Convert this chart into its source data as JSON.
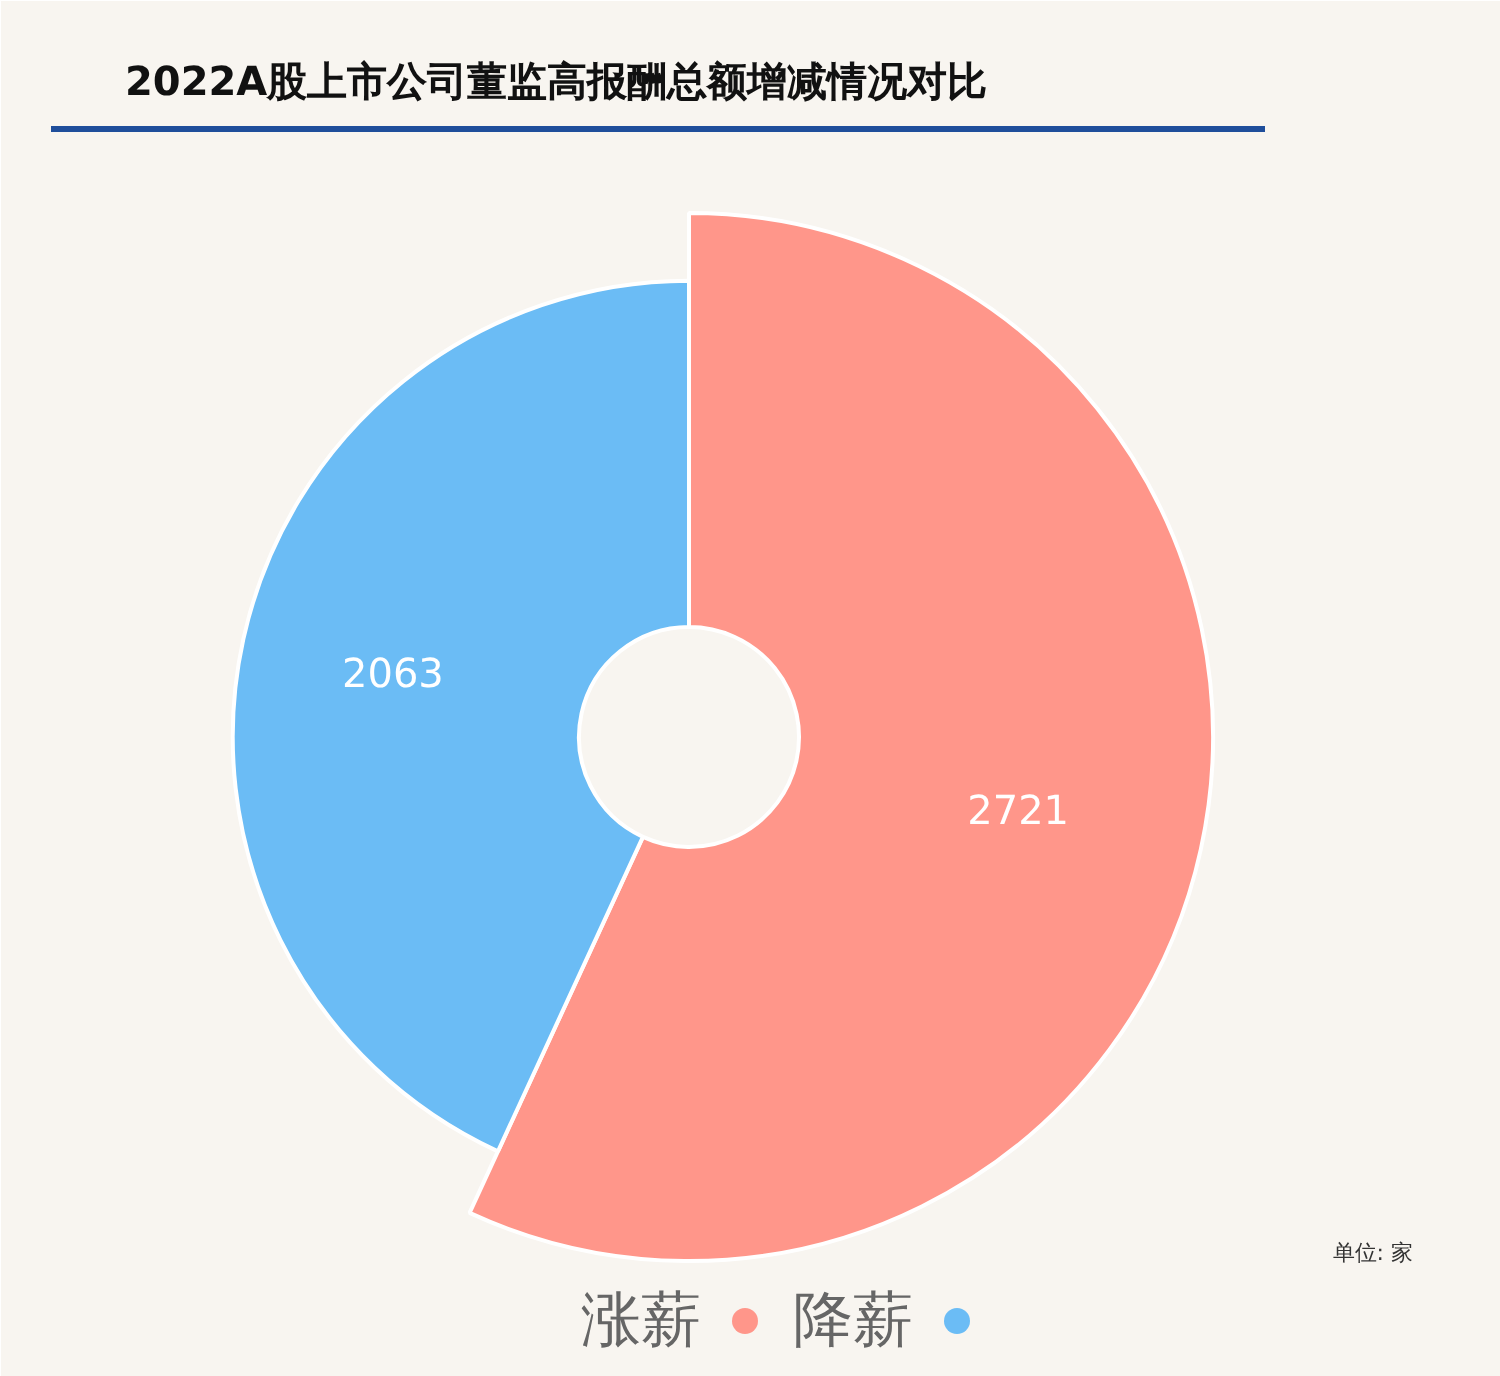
{
  "chart_data": {
    "type": "donut",
    "title": "2022A股上市公司董监高报酬总额增减情况对比",
    "categories": [
      "涨薪",
      "降薪"
    ],
    "values": [
      2721,
      2063
    ],
    "colors": [
      "#ff968a",
      "#6bbcf5"
    ],
    "data_labels": true,
    "legend": "bottom",
    "annotations": [
      "单位: 家"
    ]
  }
}
